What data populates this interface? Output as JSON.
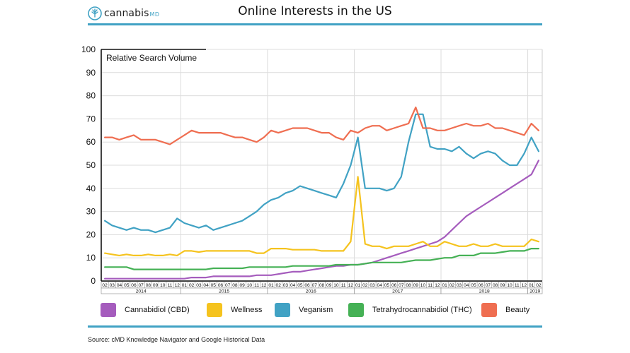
{
  "header": {
    "logo_text": "cannabis",
    "logo_suffix": "MD",
    "title": "Online Interests in the US"
  },
  "footer": {
    "source": "Source: cMD Knowledge Navigator and Google Historical Data"
  },
  "colors": {
    "accent": "#41a2c4",
    "logo_leaf": "#41a2c4"
  },
  "chart_data": {
    "type": "line",
    "title": "Online Interests in the US",
    "ylabel": "Relative Search Volume",
    "xlabel": "",
    "ylim": [
      0,
      100
    ],
    "yticks": [
      0,
      10,
      20,
      30,
      40,
      50,
      60,
      70,
      80,
      90,
      100
    ],
    "grid": true,
    "legend_position": "bottom",
    "x_months": [
      "2014-02",
      "2014-03",
      "2014-04",
      "2014-05",
      "2014-06",
      "2014-07",
      "2014-08",
      "2014-09",
      "2014-10",
      "2014-11",
      "2014-12",
      "2015-01",
      "2015-02",
      "2015-03",
      "2015-04",
      "2015-05",
      "2015-06",
      "2015-07",
      "2015-08",
      "2015-09",
      "2015-10",
      "2015-11",
      "2015-12",
      "2016-01",
      "2016-02",
      "2016-03",
      "2016-04",
      "2016-05",
      "2016-06",
      "2016-07",
      "2016-08",
      "2016-09",
      "2016-10",
      "2016-11",
      "2016-12",
      "2017-01",
      "2017-02",
      "2017-03",
      "2017-04",
      "2017-05",
      "2017-06",
      "2017-07",
      "2017-08",
      "2017-09",
      "2017-10",
      "2017-11",
      "2017-12",
      "2018-01",
      "2018-02",
      "2018-03",
      "2018-04",
      "2018-05",
      "2018-06",
      "2018-07",
      "2018-08",
      "2018-09",
      "2018-10",
      "2018-11",
      "2018-12",
      "2019-01",
      "2019-02"
    ],
    "x_tick_labels": [
      "02",
      "03",
      "04",
      "05",
      "06",
      "07",
      "08",
      "09",
      "10",
      "11",
      "12",
      "01",
      "02",
      "03",
      "04",
      "05",
      "06",
      "07",
      "08",
      "09",
      "10",
      "11",
      "12",
      "01",
      "02",
      "03",
      "04",
      "05",
      "06",
      "07",
      "08",
      "09",
      "10",
      "11",
      "12",
      "01",
      "02",
      "03",
      "04",
      "05",
      "06",
      "07",
      "08",
      "09",
      "10",
      "11",
      "12",
      "01",
      "02",
      "03",
      "04",
      "05",
      "06",
      "07",
      "08",
      "09",
      "10",
      "11",
      "12",
      "01",
      "02"
    ],
    "year_labels": [
      {
        "label": "2014",
        "start": 0,
        "end": 10
      },
      {
        "label": "2015",
        "start": 11,
        "end": 22
      },
      {
        "label": "2016",
        "start": 23,
        "end": 34
      },
      {
        "label": "2017",
        "start": 35,
        "end": 46
      },
      {
        "label": "2018",
        "start": 47,
        "end": 58
      },
      {
        "label": "2019",
        "start": 59,
        "end": 60
      }
    ],
    "series": [
      {
        "name": "Cannabidiol (CBD)",
        "color": "#a55cbd",
        "values": [
          1,
          1,
          1,
          1,
          1,
          1,
          1,
          1,
          1,
          1,
          1,
          1,
          1.5,
          1.5,
          1.5,
          2,
          2,
          2,
          2,
          2,
          2,
          2.5,
          2.5,
          2.5,
          3,
          3.5,
          4,
          4,
          4.5,
          5,
          5.5,
          6,
          6.5,
          6.5,
          7,
          7,
          7.5,
          8,
          9,
          10,
          11,
          12,
          13,
          14,
          15,
          16,
          17,
          19,
          22,
          25,
          28,
          30,
          32,
          34,
          36,
          38,
          40,
          42,
          44,
          46,
          52
        ]
      },
      {
        "name": "Wellness",
        "color": "#f5c31e",
        "values": [
          12,
          11.5,
          11,
          11.5,
          11,
          11,
          11.5,
          11,
          11,
          11.5,
          11,
          13,
          13,
          12.5,
          13,
          13,
          13,
          13,
          13,
          13,
          13,
          12,
          12,
          14,
          14,
          14,
          13.5,
          13.5,
          13.5,
          13.5,
          13,
          13,
          13,
          13,
          17,
          45,
          16,
          15,
          15,
          14,
          15,
          15,
          15,
          16,
          17,
          15,
          15,
          17,
          16,
          15,
          15,
          16,
          15,
          15,
          16,
          15,
          15,
          15,
          15,
          18,
          17
        ]
      },
      {
        "name": "Veganism",
        "color": "#41a2c4",
        "values": [
          26,
          24,
          23,
          22,
          23,
          22,
          22,
          21,
          22,
          23,
          27,
          25,
          24,
          23,
          24,
          22,
          23,
          24,
          25,
          26,
          28,
          30,
          33,
          35,
          36,
          38,
          39,
          41,
          40,
          39,
          38,
          37,
          36,
          42,
          50,
          62,
          40,
          40,
          40,
          39,
          40,
          45,
          60,
          72,
          72,
          58,
          57,
          57,
          56,
          58,
          55,
          53,
          55,
          56,
          55,
          52,
          50,
          50,
          55,
          62,
          56
        ]
      },
      {
        "name": "Tetrahydrocannabidiol (THC)",
        "color": "#45b155",
        "values": [
          6,
          6,
          6,
          6,
          5,
          5,
          5,
          5,
          5,
          5,
          5,
          5,
          5,
          5,
          5,
          5.5,
          5.5,
          5.5,
          5.5,
          5.5,
          6,
          6,
          6,
          6,
          6,
          6,
          6.5,
          6.5,
          6.5,
          6.5,
          6.5,
          6.5,
          7,
          7,
          7,
          7,
          7.5,
          8,
          8,
          8,
          8,
          8,
          8.5,
          9,
          9,
          9,
          9.5,
          10,
          10,
          11,
          11,
          11,
          12,
          12,
          12,
          12.5,
          13,
          13,
          13,
          14,
          14
        ]
      },
      {
        "name": "Beauty",
        "color": "#ef6e51",
        "values": [
          62,
          62,
          61,
          62,
          63,
          61,
          61,
          61,
          60,
          59,
          61,
          63,
          65,
          64,
          64,
          64,
          64,
          63,
          62,
          62,
          61,
          60,
          62,
          65,
          64,
          65,
          66,
          66,
          66,
          65,
          64,
          64,
          62,
          61,
          65,
          64,
          66,
          67,
          67,
          65,
          66,
          67,
          68,
          75,
          66,
          66,
          65,
          65,
          66,
          67,
          68,
          67,
          67,
          68,
          66,
          66,
          65,
          64,
          63,
          68,
          65
        ]
      }
    ]
  }
}
